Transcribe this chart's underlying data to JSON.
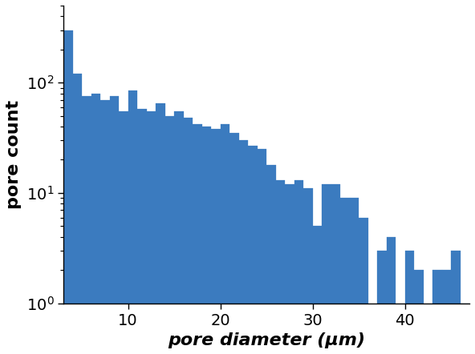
{
  "bar_heights": [
    300,
    120,
    75,
    80,
    70,
    75,
    55,
    85,
    58,
    55,
    65,
    50,
    55,
    48,
    42,
    40,
    38,
    42,
    35,
    30,
    27,
    25,
    18,
    13,
    12,
    13,
    11,
    5,
    12,
    12,
    9,
    9,
    6,
    0,
    3,
    4,
    0,
    3,
    2,
    0,
    2,
    2,
    3,
    1
  ],
  "bin_start": 3,
  "bin_width": 1,
  "bar_color": "#3b7bbf",
  "xlabel": "pore diameter (μm)",
  "ylabel": "pore count",
  "xlim": [
    3,
    47
  ],
  "ylim_bottom": 1,
  "ylim_top": 500,
  "xticks": [
    10,
    20,
    30,
    40
  ],
  "xlabel_fontsize": 16,
  "ylabel_fontsize": 16,
  "tick_fontsize": 14
}
